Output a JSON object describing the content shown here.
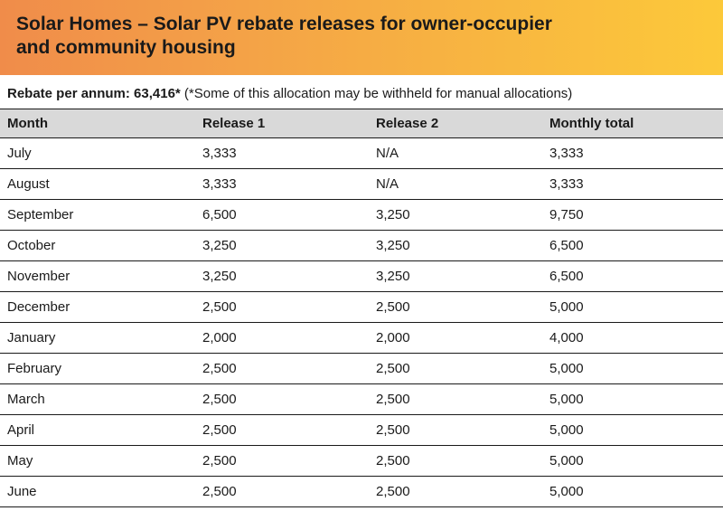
{
  "header": {
    "title_line1": "Solar Homes – Solar PV rebate releases for owner-occupier",
    "title_line2": "and community housing",
    "gradient_start": "#f08c4a",
    "gradient_mid": "#f4a347",
    "gradient_end": "#fcc93a",
    "title_color": "#1a1a1a",
    "title_fontsize": 21
  },
  "subhead": {
    "label": "Rebate per annum:",
    "value": "63,416*",
    "note": "(*Some of this allocation may be withheld for manual allocations)"
  },
  "table": {
    "type": "table",
    "header_bg": "#d9d9d9",
    "border_color": "#1a1a1a",
    "text_color": "#1a1a1a",
    "fontsize": 15,
    "columns": [
      "Month",
      "Release 1",
      "Release 2",
      "Monthly total"
    ],
    "column_widths_pct": [
      27,
      24,
      24,
      25
    ],
    "rows": [
      [
        "July",
        "3,333",
        "N/A",
        "3,333"
      ],
      [
        "August",
        "3,333",
        "N/A",
        "3,333"
      ],
      [
        "September",
        "6,500",
        "3,250",
        "9,750"
      ],
      [
        "October",
        "3,250",
        "3,250",
        "6,500"
      ],
      [
        "November",
        "3,250",
        "3,250",
        "6,500"
      ],
      [
        "December",
        "2,500",
        "2,500",
        "5,000"
      ],
      [
        "January",
        "2,000",
        "2,000",
        "4,000"
      ],
      [
        "February",
        "2,500",
        "2,500",
        "5,000"
      ],
      [
        "March",
        "2,500",
        "2,500",
        "5,000"
      ],
      [
        "April",
        "2,500",
        "2,500",
        "5,000"
      ],
      [
        "May",
        "2,500",
        "2,500",
        "5,000"
      ],
      [
        "June",
        "2,500",
        "2,500",
        "5,000"
      ]
    ]
  }
}
